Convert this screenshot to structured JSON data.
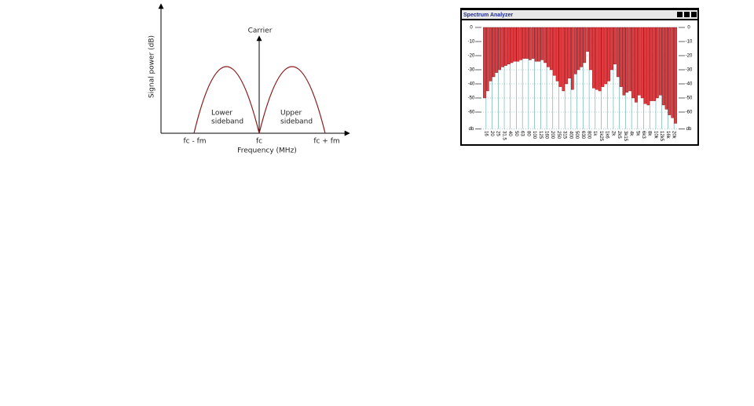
{
  "diagram": {
    "y_axis_label": "Signal power (dB)",
    "x_axis_label": "Frequency (MHz)",
    "carrier": "Carrier",
    "lower_sideband": [
      "Lower",
      "sideband"
    ],
    "upper_sideband": [
      "Upper",
      "sideband"
    ],
    "x_labels": [
      "fc - fm",
      "fc",
      "fc + fm"
    ]
  },
  "chart_data": {
    "type": "bar",
    "title": "Spectrum Analyzer",
    "color": "#e23a3f",
    "categories": [
      "16",
      null,
      "20",
      null,
      "25",
      null,
      "31.5",
      null,
      "40",
      null,
      "50",
      null,
      "63",
      null,
      "80",
      null,
      "100",
      null,
      "125",
      null,
      "160",
      null,
      "200",
      null,
      "250",
      null,
      "315",
      null,
      "400",
      null,
      "500",
      null,
      "630",
      null,
      "800",
      null,
      "1k",
      null,
      "1k25",
      null,
      "1k6",
      null,
      "2k",
      null,
      "2k5",
      null,
      "3k15",
      null,
      "4k",
      null,
      "5k",
      null,
      "6k3",
      null,
      "8k",
      null,
      "10k",
      null,
      "12k5",
      null,
      "16k",
      null,
      "20k",
      null
    ],
    "values": [
      -50,
      -45,
      -38,
      -35,
      -32,
      -30,
      -28,
      -27,
      -26,
      -25,
      -24,
      -24,
      -23,
      -22,
      -22,
      -23,
      -22,
      -24,
      -24,
      -23,
      -25,
      -28,
      -30,
      -34,
      -38,
      -42,
      -45,
      -40,
      -36,
      -44,
      -33,
      -30,
      -28,
      -25,
      -17,
      -30,
      -43,
      -44,
      -45,
      -42,
      -40,
      -38,
      -30,
      -26,
      -35,
      -42,
      -48,
      -46,
      -45,
      -50,
      -53,
      -48,
      -50,
      -54,
      -55,
      -52,
      -52,
      -50,
      -48,
      -55,
      -58,
      -62,
      -64,
      -68
    ],
    "ylim": [
      -72,
      0
    ],
    "yticks": [
      0,
      -10,
      -20,
      -30,
      -40,
      -50,
      -60,
      {
        "value": -72,
        "label": "db"
      }
    ],
    "grid": true
  }
}
